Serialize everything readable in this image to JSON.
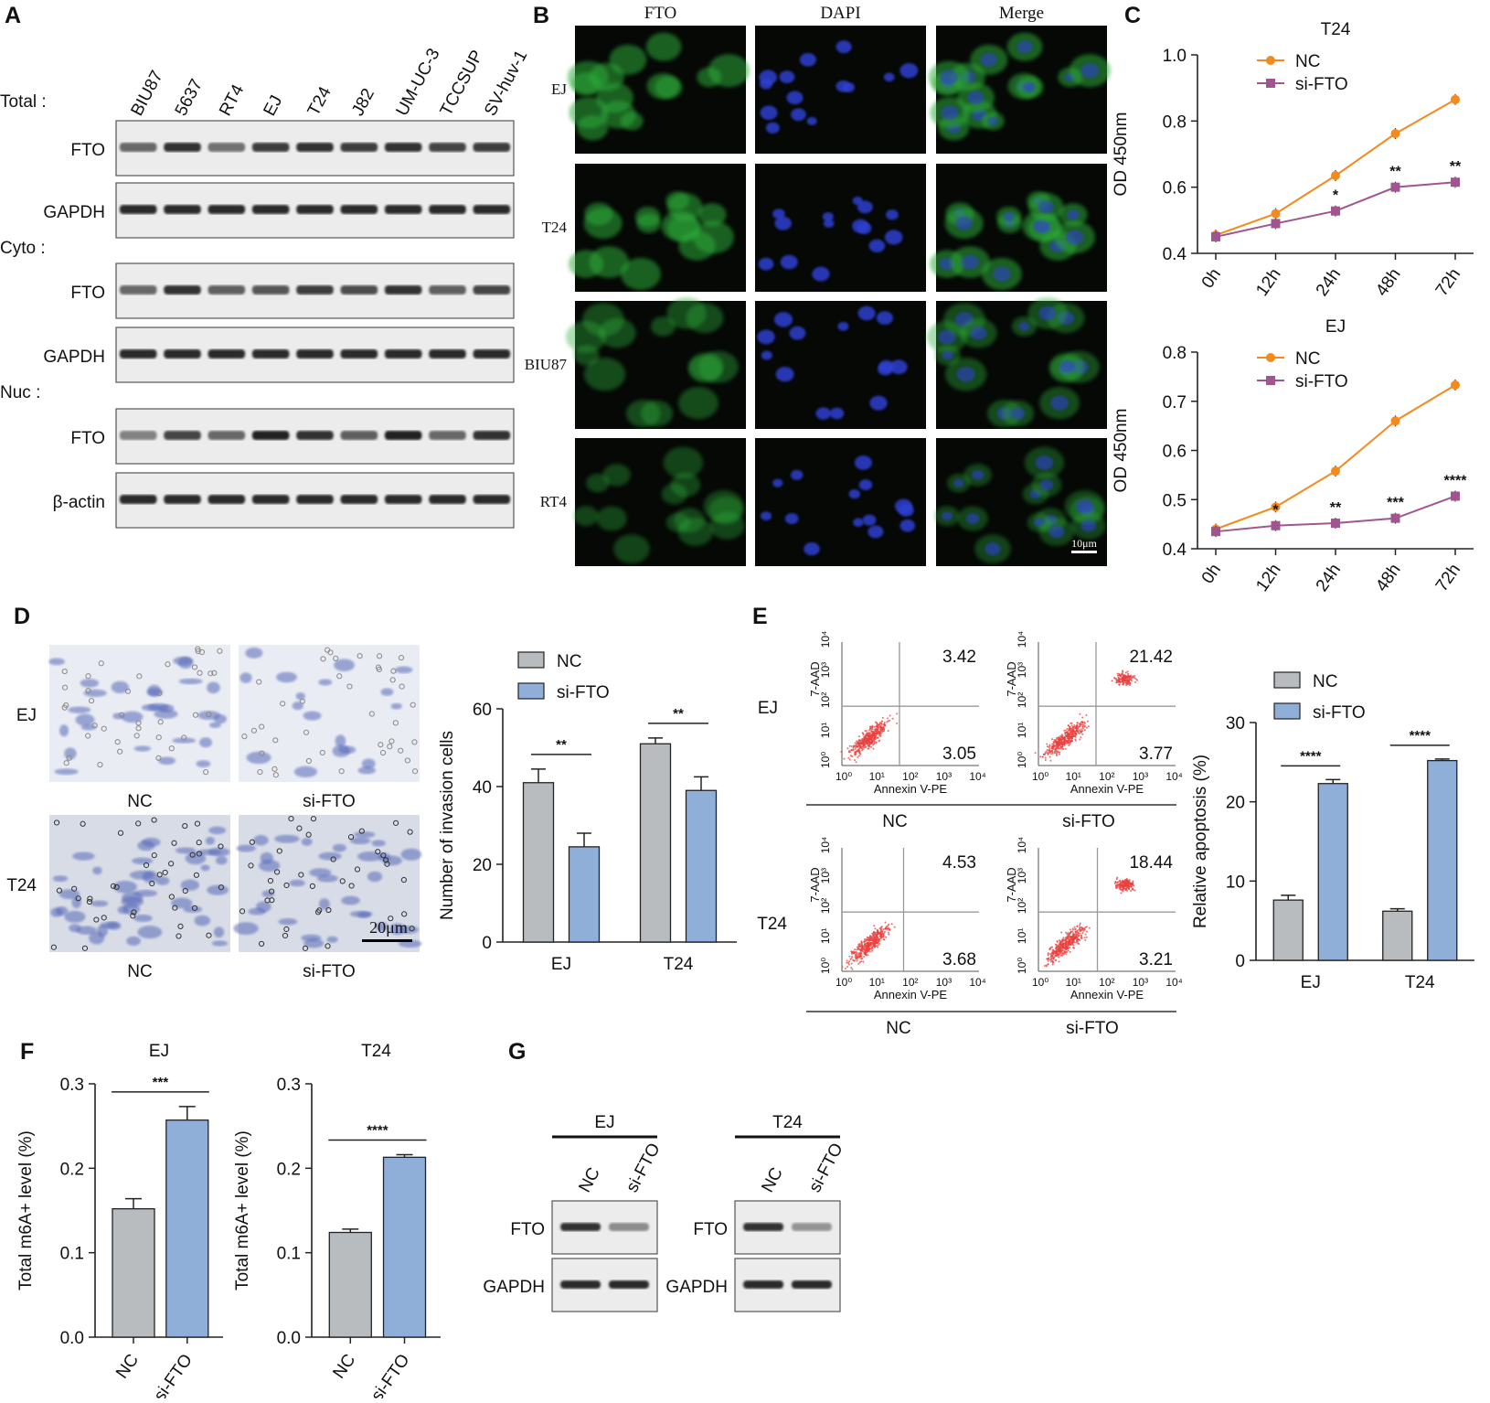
{
  "colors": {
    "nc_bar": "#b8bcbf",
    "si_bar": "#8fafd9",
    "nc_line": "#f28a1e",
    "si_line": "#a0558f",
    "fto_green": "#2fae3a",
    "dapi_blue": "#2d3fd0",
    "flow_red": "#e8403e",
    "crystal_violet": "#5468b8"
  },
  "panel_letters": [
    "A",
    "B",
    "C",
    "D",
    "E",
    "F",
    "G"
  ],
  "panelA": {
    "lanes": [
      "BIU87",
      "5637",
      "RT4",
      "EJ",
      "T24",
      "J82",
      "UM-UC-3",
      "TCCSUP",
      "SV-huv-1"
    ],
    "sections": [
      {
        "title": "Total :",
        "blots": [
          {
            "label": "FTO",
            "intensity": [
              0.55,
              0.85,
              0.5,
              0.8,
              0.85,
              0.8,
              0.85,
              0.75,
              0.8
            ]
          },
          {
            "label": "GAPDH",
            "intensity": [
              0.9,
              0.9,
              0.9,
              0.9,
              0.9,
              0.9,
              0.9,
              0.9,
              0.9
            ]
          }
        ]
      },
      {
        "title": "Cyto :",
        "blots": [
          {
            "label": "FTO",
            "intensity": [
              0.55,
              0.85,
              0.6,
              0.65,
              0.8,
              0.7,
              0.85,
              0.6,
              0.75
            ]
          },
          {
            "label": "GAPDH",
            "intensity": [
              0.9,
              0.9,
              0.9,
              0.9,
              0.9,
              0.9,
              0.9,
              0.9,
              0.9
            ]
          }
        ]
      },
      {
        "title": "Nuc :",
        "blots": [
          {
            "label": "FTO",
            "intensity": [
              0.4,
              0.75,
              0.55,
              0.95,
              0.85,
              0.6,
              0.95,
              0.55,
              0.85
            ]
          },
          {
            "label": "β-actin",
            "intensity": [
              0.9,
              0.9,
              0.9,
              0.9,
              0.9,
              0.9,
              0.9,
              0.9,
              0.9
            ]
          }
        ]
      }
    ]
  },
  "panelB": {
    "columns": [
      "FTO",
      "DAPI",
      "Merge"
    ],
    "rows": [
      "EJ",
      "T24",
      "BIU87",
      "RT4"
    ],
    "scale_bar": "10μm"
  },
  "panelC": {
    "legend": [
      "NC",
      "si-FTO"
    ],
    "ylabel": "OD 450nm"
  },
  "panelD": {
    "images": {
      "rows": [
        "EJ",
        "T24"
      ],
      "labels": [
        "NC",
        "si-FTO"
      ],
      "scale_bar": "20μm"
    },
    "legend": [
      "NC",
      "si-FTO"
    ]
  },
  "panelE": {
    "rows": [
      "EJ",
      "T24"
    ],
    "groups": [
      "NC",
      "si-FTO"
    ],
    "flow_plots": [
      {
        "row": "EJ",
        "group": "NC",
        "ur": "3.42",
        "lr": "3.05"
      },
      {
        "row": "EJ",
        "group": "si-FTO",
        "ur": "21.42",
        "lr": "3.77"
      },
      {
        "row": "T24",
        "group": "NC",
        "ur": "4.53",
        "lr": "3.68"
      },
      {
        "row": "T24",
        "group": "si-FTO",
        "ur": "18.44",
        "lr": "3.21"
      }
    ],
    "flow_axes": {
      "xlabel": "Annexin V-PE",
      "ylabel": "7-AAD",
      "ticks": [
        "10⁰",
        "10¹",
        "10²",
        "10³",
        "10⁴"
      ]
    },
    "legend": [
      "NC",
      "si-FTO"
    ]
  },
  "panelG": {
    "groups": [
      {
        "title": "EJ",
        "lanes": [
          "NC",
          "si-FTO"
        ],
        "blots": [
          {
            "label": "FTO",
            "intensity": [
              0.85,
              0.35
            ]
          },
          {
            "label": "GAPDH",
            "intensity": [
              0.9,
              0.9
            ]
          }
        ]
      },
      {
        "title": "T24",
        "lanes": [
          "NC",
          "si-FTO"
        ],
        "blots": [
          {
            "label": "FTO",
            "intensity": [
              0.85,
              0.3
            ]
          },
          {
            "label": "GAPDH",
            "intensity": [
              0.9,
              0.9
            ]
          }
        ]
      }
    ]
  },
  "chart_data": [
    {
      "id": "C-T24",
      "type": "line",
      "title": "T24",
      "x": [
        "0h",
        "12h",
        "24h",
        "48h",
        "72h"
      ],
      "ylabel": "OD 450nm",
      "ylim": [
        0.4,
        1.0
      ],
      "yticks": [
        "0.4",
        "0.6",
        "0.8",
        "1.0"
      ],
      "series": [
        {
          "name": "NC",
          "values": [
            0.455,
            0.52,
            0.635,
            0.762,
            0.865
          ]
        },
        {
          "name": "si-FTO",
          "values": [
            0.45,
            0.49,
            0.528,
            0.6,
            0.615
          ]
        }
      ],
      "significance": [
        "",
        "",
        "*",
        "**",
        "**"
      ],
      "legend": "top-left"
    },
    {
      "id": "C-EJ",
      "type": "line",
      "title": "EJ",
      "x": [
        "0h",
        "12h",
        "24h",
        "48h",
        "72h"
      ],
      "ylabel": "OD 450nm",
      "ylim": [
        0.4,
        0.8
      ],
      "yticks": [
        "0.4",
        "0.5",
        "0.6",
        "0.7",
        "0.8"
      ],
      "series": [
        {
          "name": "NC",
          "values": [
            0.44,
            0.485,
            0.558,
            0.66,
            0.733
          ]
        },
        {
          "name": "si-FTO",
          "values": [
            0.435,
            0.447,
            0.452,
            0.462,
            0.507
          ]
        }
      ],
      "significance": [
        "",
        "*",
        "**",
        "***",
        "****"
      ],
      "legend": "top-left"
    },
    {
      "id": "D",
      "type": "bar",
      "categories": [
        "EJ",
        "T24"
      ],
      "ylabel": "Number of invasion cells",
      "ylim": [
        0,
        60
      ],
      "yticks": [
        "0",
        "20",
        "40",
        "60"
      ],
      "series": [
        {
          "name": "NC",
          "values": [
            41,
            51
          ],
          "errors": [
            3.5,
            1.5
          ]
        },
        {
          "name": "si-FTO",
          "values": [
            24.5,
            39
          ],
          "errors": [
            3.5,
            3.5
          ]
        }
      ],
      "significance": [
        "**",
        "**"
      ],
      "legend": "top-left"
    },
    {
      "id": "E",
      "type": "bar",
      "categories": [
        "EJ",
        "T24"
      ],
      "ylabel": "Relative apoptosis (%)",
      "ylim": [
        0,
        30
      ],
      "yticks": [
        "0",
        "10",
        "20",
        "30"
      ],
      "series": [
        {
          "name": "NC",
          "values": [
            7.6,
            6.2
          ],
          "errors": [
            0.6,
            0.3
          ]
        },
        {
          "name": "si-FTO",
          "values": [
            22.3,
            25.2
          ],
          "errors": [
            0.5,
            0.2
          ]
        }
      ],
      "significance": [
        "****",
        "****"
      ],
      "legend": "top-left"
    },
    {
      "id": "F-EJ",
      "type": "bar",
      "title": "EJ",
      "categories": [
        "NC",
        "si-FTO"
      ],
      "ylabel": "Total m6A+ level (%)",
      "ylim": [
        0,
        0.3
      ],
      "yticks": [
        "0.0",
        "0.1",
        "0.2",
        "0.3"
      ],
      "values": [
        0.152,
        0.257
      ],
      "errors": [
        0.012,
        0.016
      ],
      "significance": "***"
    },
    {
      "id": "F-T24",
      "type": "bar",
      "title": "T24",
      "categories": [
        "NC",
        "si-FTO"
      ],
      "ylabel": "Total m6A+ level (%)",
      "ylim": [
        0,
        0.3
      ],
      "yticks": [
        "0.0",
        "0.1",
        "0.2",
        "0.3"
      ],
      "values": [
        0.124,
        0.213
      ],
      "errors": [
        0.004,
        0.003
      ],
      "significance": "****"
    }
  ]
}
